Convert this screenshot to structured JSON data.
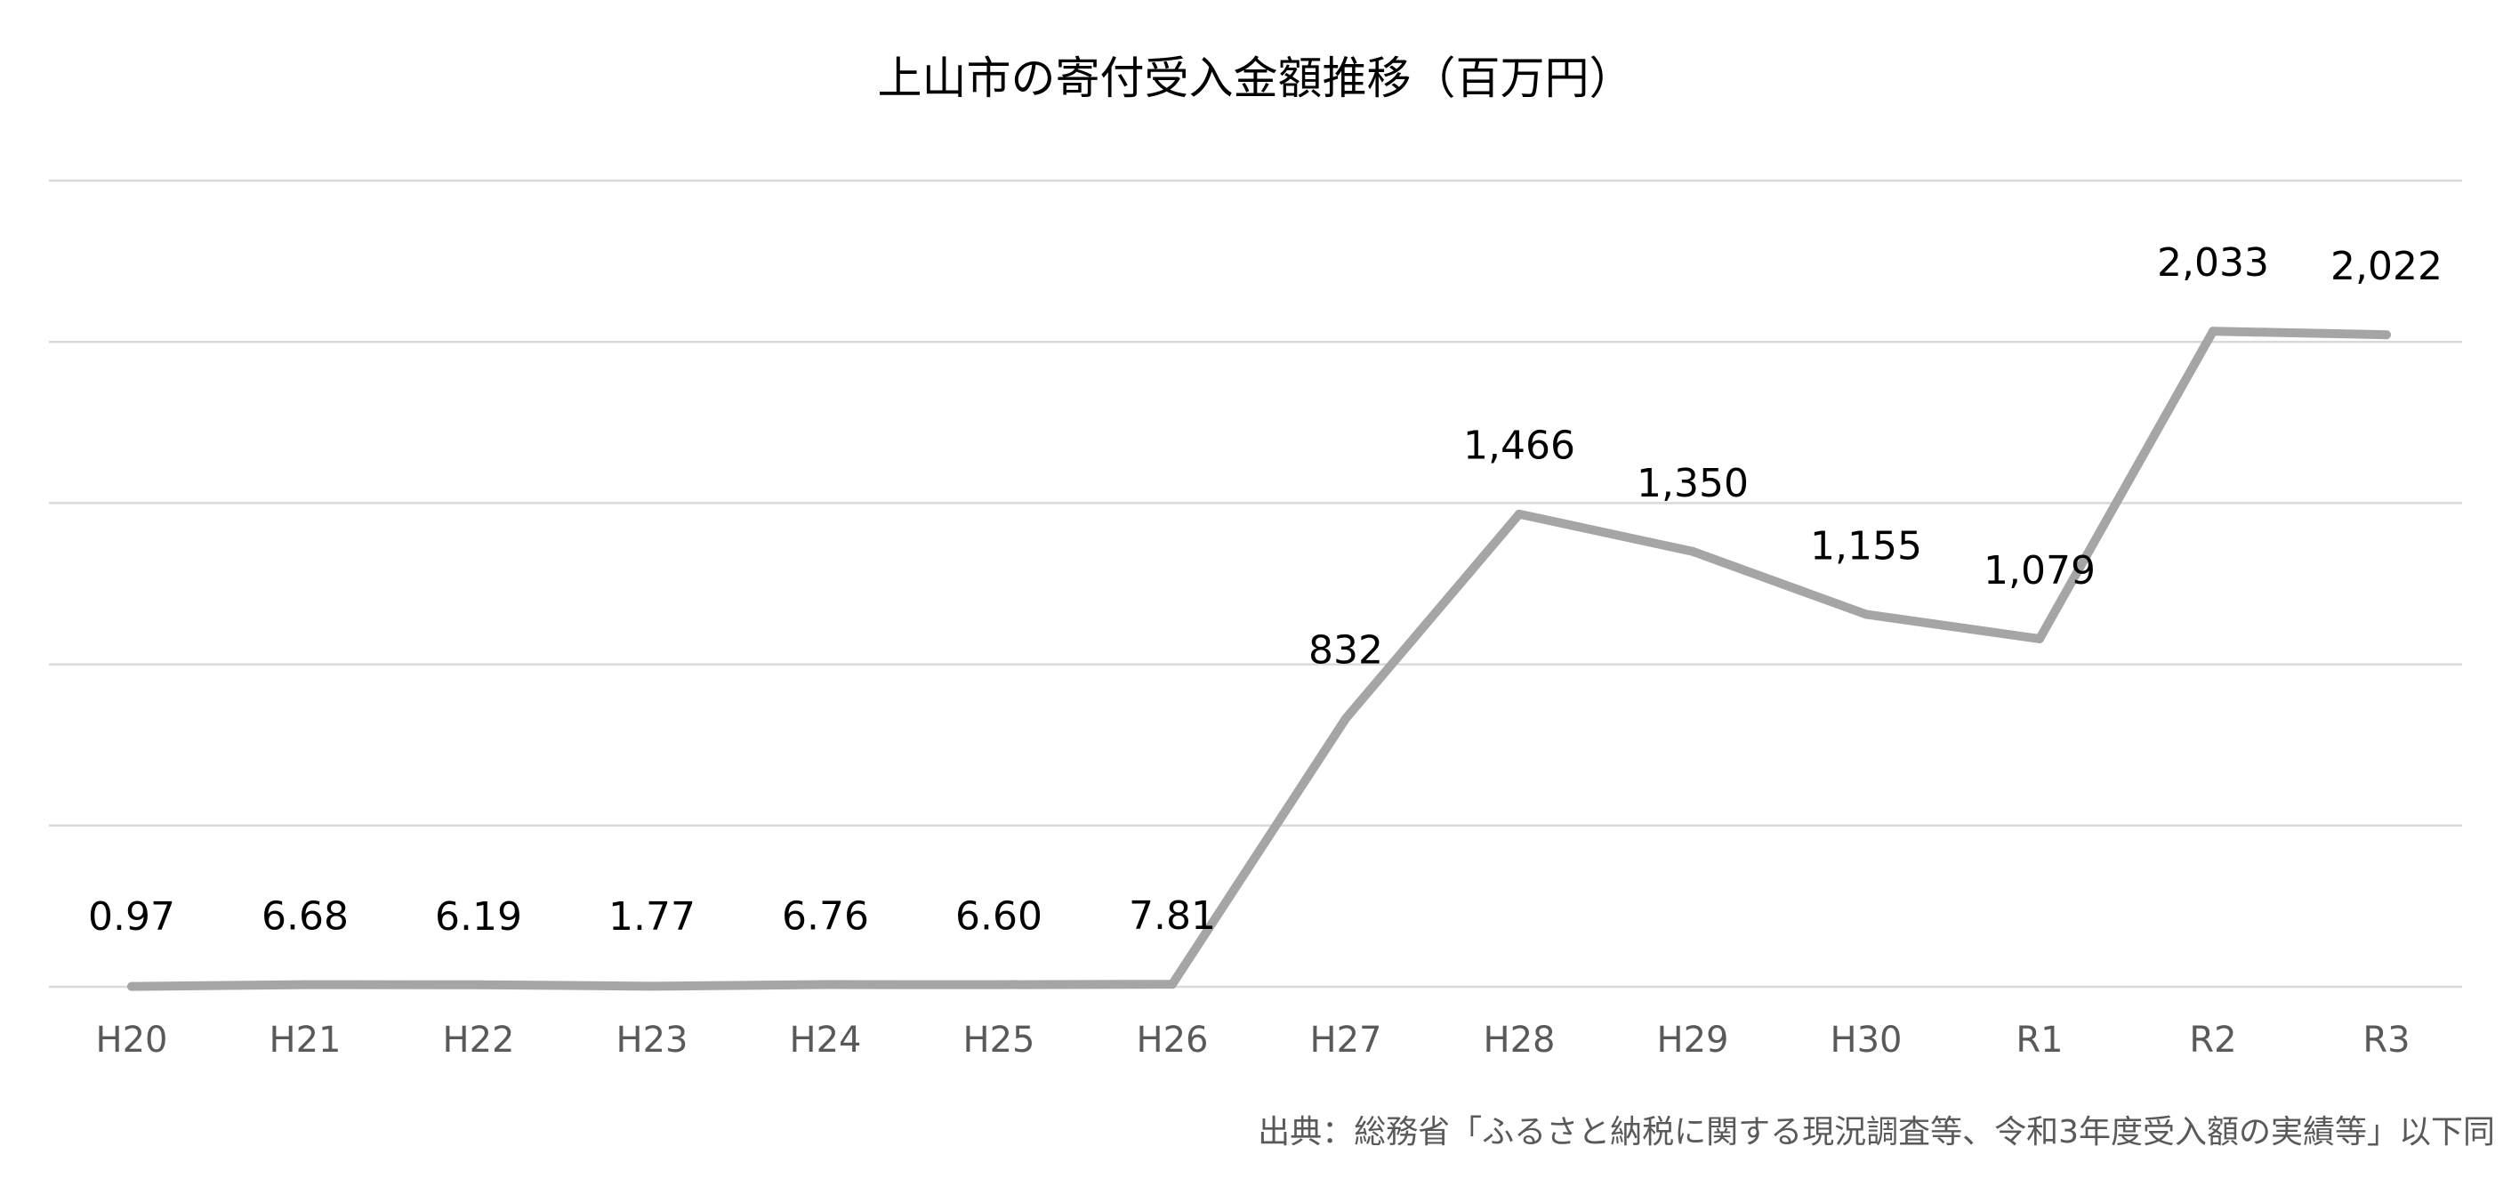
{
  "chart_data": {
    "type": "line",
    "title": "上山市の寄付受入金額推移（百万円）",
    "categories": [
      "H20",
      "H21",
      "H22",
      "H23",
      "H24",
      "H25",
      "H26",
      "H27",
      "H28",
      "H29",
      "H30",
      "R1",
      "R2",
      "R3"
    ],
    "series": [
      {
        "values": [
          0.97,
          6.68,
          6.19,
          1.77,
          6.76,
          6.6,
          7.81,
          832,
          1466,
          1350,
          1155,
          1079,
          2033,
          2022
        ],
        "labels": [
          "0.97",
          "6.68",
          "6.19",
          "1.77",
          "6.76",
          "6.60",
          "7.81",
          "832",
          "1,466",
          "1,350",
          "1,155",
          "1,079",
          "2,033",
          "2,022"
        ]
      }
    ],
    "xlabel": "",
    "ylabel": "",
    "ylim": [
      0,
      2500
    ],
    "grid": true,
    "legend": "none",
    "line_color": "#a5a5a5",
    "grid_color": "#d9d9d9"
  },
  "source_note": "出典：総務省「ふるさと納税に関する現況調査等、令和3年度受入額の実績等」以下同"
}
